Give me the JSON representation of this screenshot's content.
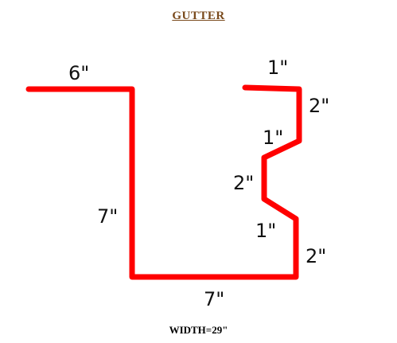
{
  "title": "GUTTER",
  "width_label": "WIDTH=29\"",
  "stroke_color": "#ff0000",
  "dimensions": {
    "top_left_flange": "6\"",
    "left_side": "7\"",
    "bottom": "7\"",
    "top_right_lip": "1\"",
    "right_upper": "2\"",
    "right_upper_diagonal": "1\"",
    "right_middle": "2\"",
    "right_lower_diagonal": "1\"",
    "right_lower": "2\""
  }
}
